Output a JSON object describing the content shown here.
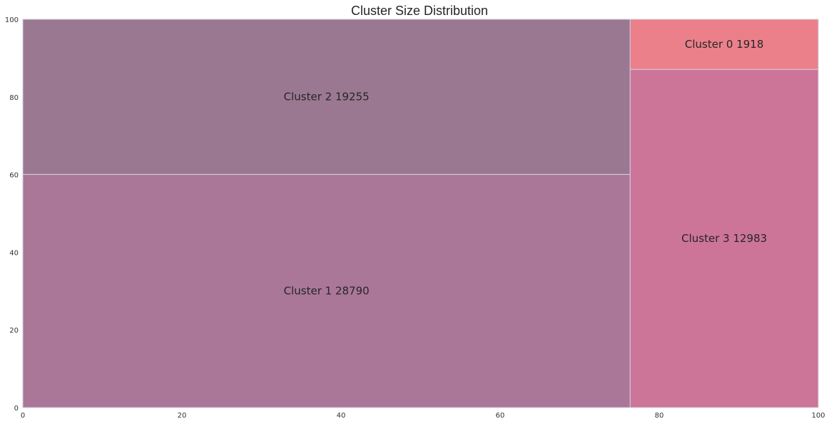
{
  "chart_data": {
    "type": "treemap",
    "title": "Cluster Size Distribution",
    "xlabel": "",
    "ylabel": "",
    "xlim": [
      0,
      100
    ],
    "ylim": [
      0,
      100
    ],
    "xticks": [
      "0",
      "20",
      "40",
      "60",
      "80",
      "100"
    ],
    "yticks": [
      "0",
      "20",
      "40",
      "60",
      "80",
      "100"
    ],
    "grid": false,
    "background": "#eaeaf2",
    "border_color": "#d0d0e0",
    "rects": [
      {
        "label": "Cluster 1 28790",
        "value": 28790,
        "x": 0,
        "y": 0,
        "dx": 76.35,
        "dy": 60.05,
        "color": "#aa7799"
      },
      {
        "label": "Cluster 2 19255",
        "value": 19255,
        "x": 0,
        "y": 60.05,
        "dx": 76.35,
        "dy": 39.95,
        "color": "#9b7892"
      },
      {
        "label": "Cluster 3 12983",
        "value": 12983,
        "x": 76.35,
        "y": 0,
        "dx": 23.65,
        "dy": 87.1,
        "color": "#cd7499"
      },
      {
        "label": "Cluster 0 1918",
        "value": 1918,
        "x": 76.35,
        "y": 87.1,
        "dx": 23.65,
        "dy": 12.9,
        "color": "#eb808b"
      }
    ]
  }
}
